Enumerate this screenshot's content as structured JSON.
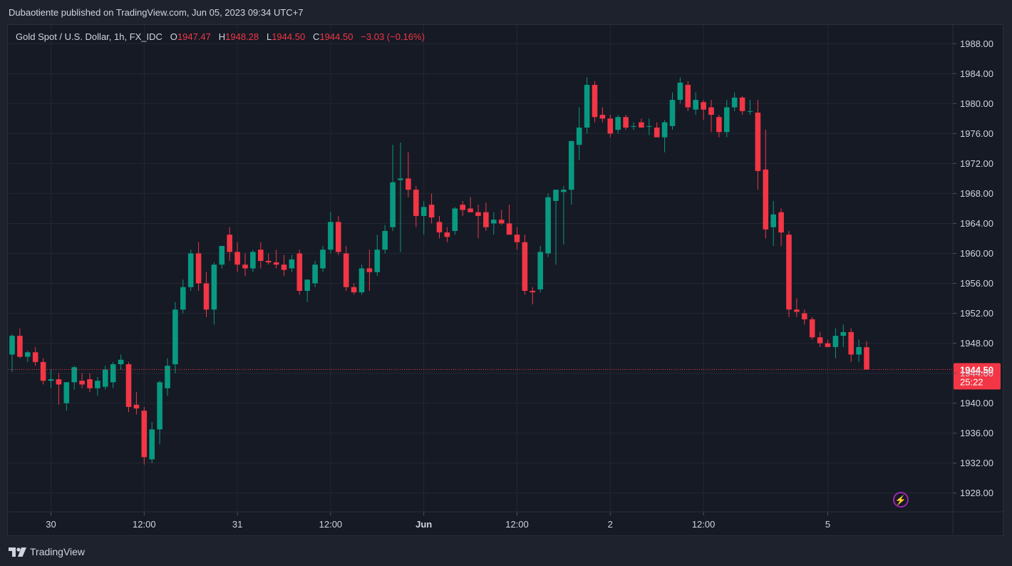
{
  "header": {
    "published": "Dubaotiente published on TradingView.com, Jun 05, 2023 09:34 UTC+7"
  },
  "legend": {
    "symbol": "Gold Spot / U.S. Dollar, 1h, FX_IDC",
    "o_label": "O",
    "o_value": "1947.47",
    "h_label": "H",
    "h_value": "1948.28",
    "l_label": "L",
    "l_value": "1944.50",
    "c_label": "C",
    "c_value": "1944.50",
    "change": "−3.03 (−0.16%)"
  },
  "price_tag": {
    "price": "1944.50",
    "countdown": "25:22"
  },
  "brand": {
    "name": "TradingView",
    "logo_icon": "tradingview-logo-icon"
  },
  "flash_icon": "lightning-icon",
  "colors": {
    "up": "#089981",
    "down": "#f23645",
    "background": "#161a25",
    "grid": "#232733",
    "text": "#d1d4dc"
  },
  "chart_data": {
    "type": "candlestick",
    "interval": "1h",
    "ylim": [
      1925.5,
      1990.5
    ],
    "y_ticks": [
      "1928.00",
      "1932.00",
      "1936.00",
      "1940.00",
      "1944.00",
      "1948.00",
      "1952.00",
      "1956.00",
      "1960.00",
      "1964.00",
      "1968.00",
      "1972.00",
      "1976.00",
      "1980.00",
      "1984.00",
      "1988.00"
    ],
    "x_ticks": [
      {
        "label": "30",
        "index": 5,
        "bold": false
      },
      {
        "label": "12:00",
        "index": 17,
        "bold": false
      },
      {
        "label": "31",
        "index": 29,
        "bold": false
      },
      {
        "label": "12:00",
        "index": 41,
        "bold": false
      },
      {
        "label": "Jun",
        "index": 53,
        "bold": true
      },
      {
        "label": "12:00",
        "index": 65,
        "bold": false
      },
      {
        "label": "2",
        "index": 77,
        "bold": false
      },
      {
        "label": "12:00",
        "index": 89,
        "bold": false
      },
      {
        "label": "5",
        "index": 105,
        "bold": false
      }
    ],
    "last_price": 1944.5,
    "candles": [
      [
        1946.5,
        1949.2,
        1944.2,
        1949.0
      ],
      [
        1949.0,
        1950.0,
        1946.0,
        1946.2
      ],
      [
        1946.2,
        1947.0,
        1945.5,
        1946.8
      ],
      [
        1946.8,
        1947.5,
        1945.0,
        1945.5
      ],
      [
        1945.5,
        1946.0,
        1942.5,
        1943.0
      ],
      [
        1943.0,
        1944.5,
        1942.0,
        1943.2
      ],
      [
        1943.2,
        1944.0,
        1939.8,
        1942.5
      ],
      [
        1940.0,
        1942.5,
        1939.0,
        1942.8
      ],
      [
        1942.8,
        1945.0,
        1941.8,
        1944.8
      ],
      [
        1943.0,
        1944.0,
        1942.0,
        1942.5
      ],
      [
        1943.2,
        1944.0,
        1941.5,
        1942.0
      ],
      [
        1942.0,
        1943.5,
        1941.0,
        1943.0
      ],
      [
        1942.2,
        1945.0,
        1941.8,
        1944.5
      ],
      [
        1942.8,
        1945.5,
        1942.0,
        1945.2
      ],
      [
        1945.2,
        1946.5,
        1944.5,
        1945.8
      ],
      [
        1945.2,
        1945.5,
        1938.8,
        1939.5
      ],
      [
        1939.8,
        1941.5,
        1938.5,
        1939.3
      ],
      [
        1939.0,
        1939.5,
        1931.8,
        1932.8
      ],
      [
        1932.5,
        1937.5,
        1932.0,
        1936.5
      ],
      [
        1936.5,
        1943.0,
        1934.5,
        1942.8
      ],
      [
        1942.0,
        1946.0,
        1941.0,
        1945.0
      ],
      [
        1945.2,
        1953.5,
        1944.0,
        1952.5
      ],
      [
        1952.5,
        1956.5,
        1952.0,
        1955.5
      ],
      [
        1955.5,
        1960.5,
        1955.0,
        1960.0
      ],
      [
        1960.0,
        1961.5,
        1955.0,
        1956.0
      ],
      [
        1956.0,
        1957.5,
        1951.5,
        1952.5
      ],
      [
        1952.5,
        1958.8,
        1950.5,
        1958.5
      ],
      [
        1958.5,
        1961.0,
        1958.0,
        1961.0
      ],
      [
        1962.5,
        1963.5,
        1959.0,
        1960.2
      ],
      [
        1960.2,
        1961.5,
        1957.5,
        1958.5
      ],
      [
        1958.5,
        1960.0,
        1957.0,
        1958.0
      ],
      [
        1958.0,
        1960.5,
        1957.5,
        1960.2
      ],
      [
        1960.5,
        1961.5,
        1958.0,
        1959.0
      ],
      [
        1959.0,
        1960.0,
        1958.5,
        1958.8
      ],
      [
        1958.8,
        1960.5,
        1958.0,
        1958.5
      ],
      [
        1958.5,
        1959.8,
        1957.0,
        1957.8
      ],
      [
        1958.0,
        1959.8,
        1957.5,
        1959.2
      ],
      [
        1960.0,
        1960.5,
        1954.5,
        1955.0
      ],
      [
        1955.0,
        1956.5,
        1953.5,
        1956.5
      ],
      [
        1956.0,
        1959.0,
        1955.5,
        1958.5
      ],
      [
        1958.0,
        1961.0,
        1957.5,
        1960.5
      ],
      [
        1960.5,
        1965.5,
        1960.0,
        1964.2
      ],
      [
        1964.2,
        1965.0,
        1959.8,
        1960.2
      ],
      [
        1960.0,
        1961.0,
        1955.0,
        1955.5
      ],
      [
        1955.5,
        1956.0,
        1954.5,
        1954.8
      ],
      [
        1954.8,
        1958.5,
        1954.5,
        1958.0
      ],
      [
        1958.0,
        1960.5,
        1955.0,
        1957.5
      ],
      [
        1957.5,
        1962.5,
        1957.0,
        1960.5
      ],
      [
        1960.5,
        1963.8,
        1960.0,
        1963.0
      ],
      [
        1963.5,
        1974.5,
        1963.0,
        1969.5
      ],
      [
        1969.8,
        1974.8,
        1960.2,
        1970.0
      ],
      [
        1970.0,
        1973.5,
        1967.5,
        1968.5
      ],
      [
        1968.5,
        1969.0,
        1963.5,
        1965.0
      ],
      [
        1965.0,
        1967.0,
        1962.5,
        1966.2
      ],
      [
        1966.5,
        1968.0,
        1964.0,
        1964.8
      ],
      [
        1964.2,
        1965.0,
        1962.0,
        1962.8
      ],
      [
        1962.8,
        1963.5,
        1961.5,
        1962.2
      ],
      [
        1963.0,
        1966.2,
        1962.5,
        1966.0
      ],
      [
        1966.5,
        1967.0,
        1965.0,
        1965.8
      ],
      [
        1966.0,
        1967.5,
        1965.5,
        1965.5
      ],
      [
        1965.5,
        1966.5,
        1962.0,
        1965.0
      ],
      [
        1965.5,
        1966.8,
        1963.0,
        1963.5
      ],
      [
        1964.0,
        1965.5,
        1962.5,
        1964.5
      ],
      [
        1964.5,
        1965.8,
        1963.8,
        1964.0
      ],
      [
        1964.0,
        1966.5,
        1962.5,
        1962.5
      ],
      [
        1962.5,
        1963.5,
        1960.5,
        1961.5
      ],
      [
        1961.5,
        1962.5,
        1954.5,
        1955.0
      ],
      [
        1955.0,
        1955.5,
        1953.2,
        1954.8
      ],
      [
        1955.2,
        1961.0,
        1954.8,
        1960.2
      ],
      [
        1960.0,
        1968.0,
        1959.5,
        1967.5
      ],
      [
        1967.0,
        1968.5,
        1958.5,
        1968.5
      ],
      [
        1968.2,
        1969.0,
        1961.2,
        1968.5
      ],
      [
        1968.5,
        1975.0,
        1966.5,
        1975.0
      ],
      [
        1974.5,
        1979.5,
        1972.5,
        1976.8
      ],
      [
        1976.8,
        1983.5,
        1976.0,
        1982.5
      ],
      [
        1982.5,
        1983.0,
        1977.5,
        1978.2
      ],
      [
        1978.5,
        1979.5,
        1977.5,
        1978.0
      ],
      [
        1978.0,
        1978.5,
        1975.5,
        1976.0
      ],
      [
        1976.5,
        1978.5,
        1976.0,
        1978.2
      ],
      [
        1978.2,
        1978.5,
        1976.5,
        1976.8
      ],
      [
        1977.0,
        1977.5,
        1976.5,
        1977.0
      ],
      [
        1977.5,
        1978.0,
        1976.8,
        1976.8
      ],
      [
        1977.0,
        1978.0,
        1975.8,
        1977.0
      ],
      [
        1976.8,
        1977.5,
        1975.5,
        1975.5
      ],
      [
        1975.5,
        1977.8,
        1973.5,
        1977.5
      ],
      [
        1977.0,
        1981.5,
        1976.5,
        1980.5
      ],
      [
        1980.5,
        1983.5,
        1980.0,
        1982.8
      ],
      [
        1982.5,
        1983.0,
        1979.0,
        1979.5
      ],
      [
        1979.2,
        1981.5,
        1978.5,
        1980.5
      ],
      [
        1980.2,
        1980.5,
        1977.8,
        1979.2
      ],
      [
        1979.5,
        1980.5,
        1976.2,
        1978.5
      ],
      [
        1978.2,
        1978.5,
        1975.5,
        1976.2
      ],
      [
        1976.2,
        1980.5,
        1975.5,
        1979.5
      ],
      [
        1979.5,
        1981.5,
        1979.0,
        1980.8
      ],
      [
        1980.8,
        1981.0,
        1978.5,
        1979.0
      ],
      [
        1979.0,
        1980.5,
        1978.5,
        1979.0
      ],
      [
        1978.8,
        1980.5,
        1968.5,
        1971.0
      ],
      [
        1971.2,
        1976.5,
        1962.0,
        1963.2
      ],
      [
        1963.5,
        1967.0,
        1961.0,
        1965.2
      ],
      [
        1965.5,
        1966.0,
        1961.0,
        1962.8
      ],
      [
        1962.5,
        1963.0,
        1951.5,
        1952.5
      ],
      [
        1952.5,
        1954.0,
        1951.5,
        1952.2
      ],
      [
        1952.0,
        1952.5,
        1950.5,
        1951.2
      ],
      [
        1951.2,
        1951.5,
        1948.5,
        1948.8
      ],
      [
        1948.8,
        1949.5,
        1947.5,
        1948.0
      ],
      [
        1948.0,
        1948.5,
        1947.5,
        1947.5
      ],
      [
        1947.5,
        1950.0,
        1946.0,
        1949.0
      ],
      [
        1949.0,
        1950.5,
        1947.5,
        1949.5
      ],
      [
        1949.5,
        1950.0,
        1945.5,
        1946.5
      ],
      [
        1946.5,
        1948.5,
        1945.5,
        1947.5
      ],
      [
        1947.47,
        1948.28,
        1944.5,
        1944.5
      ]
    ]
  }
}
